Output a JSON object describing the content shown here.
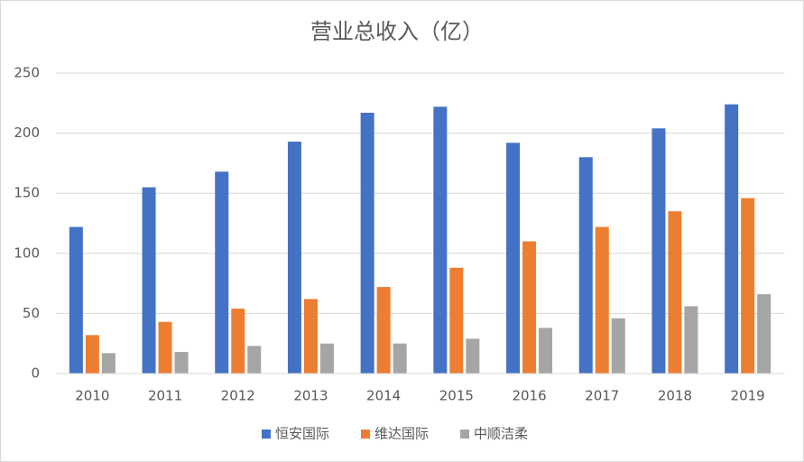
{
  "chart_data": {
    "type": "bar",
    "title": "营业总收入（亿）",
    "categories": [
      "2010",
      "2011",
      "2012",
      "2013",
      "2014",
      "2015",
      "2016",
      "2017",
      "2018",
      "2019"
    ],
    "series": [
      {
        "name": "恒安国际",
        "color": "#4472c4",
        "values": [
          122,
          155,
          168,
          193,
          217,
          222,
          192,
          180,
          204,
          224
        ]
      },
      {
        "name": "维达国际",
        "color": "#ed7d31",
        "values": [
          32,
          43,
          54,
          62,
          72,
          88,
          110,
          122,
          135,
          146
        ]
      },
      {
        "name": "中顺洁柔",
        "color": "#a5a5a5",
        "values": [
          17,
          18,
          23,
          25,
          25,
          29,
          38,
          46,
          56,
          66
        ]
      }
    ],
    "ylim": [
      0,
      250
    ],
    "yticks": [
      0,
      50,
      100,
      150,
      200,
      250
    ],
    "grid": true,
    "legend": "bottom"
  }
}
